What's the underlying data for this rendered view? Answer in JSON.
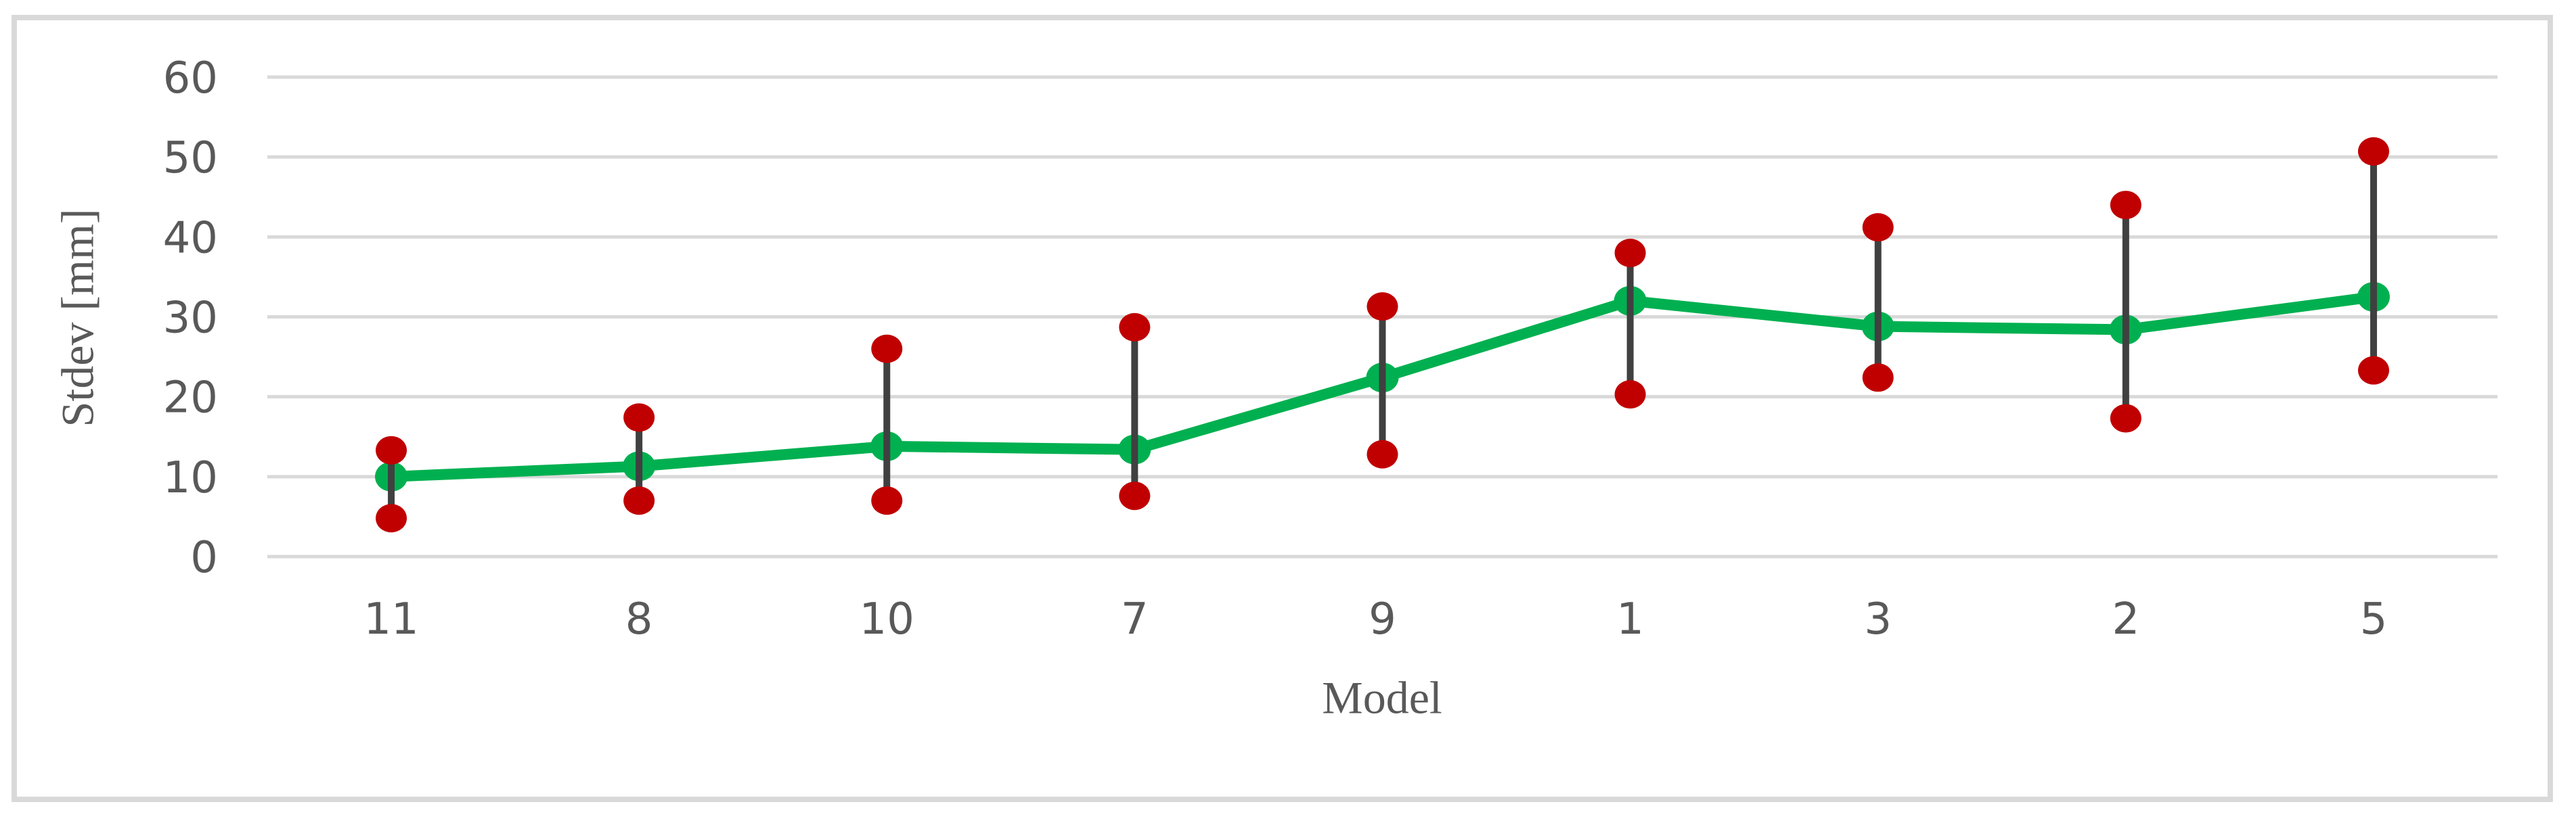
{
  "chart_data": {
    "type": "line",
    "x_axis": {
      "label": "Model",
      "categories": [
        "11",
        "8",
        "10",
        "7",
        "9",
        "1",
        "3",
        "2",
        "5"
      ]
    },
    "y_axis": {
      "label": "Stdev [mm]",
      "min": 0,
      "max": 60,
      "tick_step": 10,
      "ticks": [
        0,
        10,
        20,
        30,
        40,
        50,
        60
      ]
    },
    "series": [
      {
        "name": "mean",
        "style": "line-with-markers",
        "color": "#00B050",
        "values": [
          10.0,
          11.3,
          13.8,
          13.4,
          22.4,
          32.0,
          28.8,
          28.4,
          32.5
        ]
      },
      {
        "name": "upper",
        "style": "markers",
        "color": "#C00000",
        "values": [
          13.3,
          17.4,
          26.0,
          28.7,
          31.3,
          38.0,
          41.2,
          44.0,
          50.7
        ]
      },
      {
        "name": "lower",
        "style": "markers",
        "color": "#C00000",
        "values": [
          4.8,
          7.0,
          7.0,
          7.6,
          12.8,
          20.3,
          22.4,
          17.3,
          23.3
        ]
      }
    ],
    "error_bars": {
      "color": "#404040",
      "connects": "lower-to-upper"
    },
    "legend": "none",
    "grid": "horizontal",
    "gridline_color": "#D9D9D9",
    "frame_color": "#D9D9D9",
    "text_color": "#595959",
    "background_color": "#FFFFFF"
  }
}
